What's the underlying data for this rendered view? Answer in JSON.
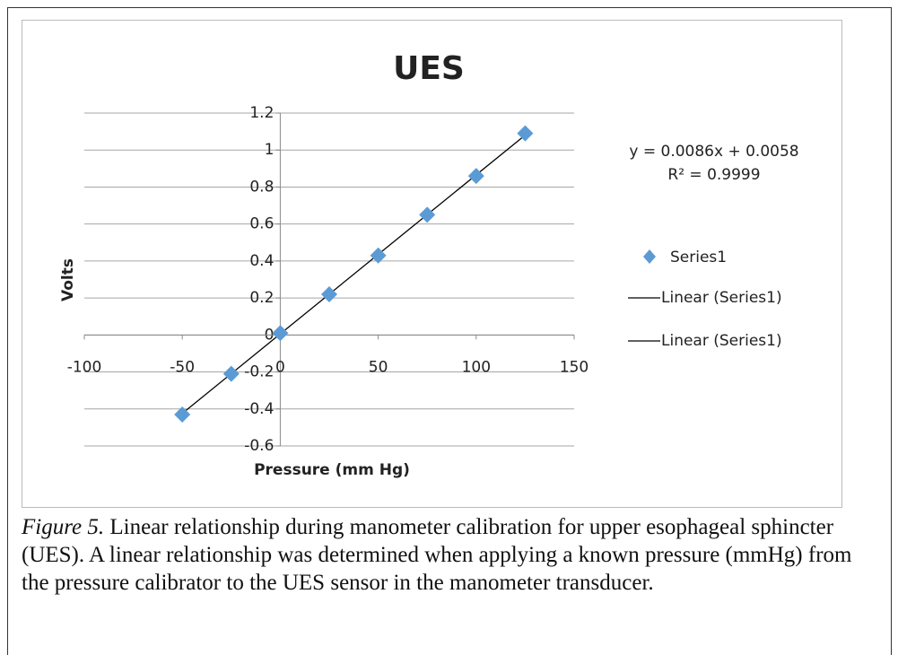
{
  "chart_data": {
    "type": "scatter",
    "title": "UES",
    "x_label": "Pressure (mm Hg)",
    "y_label": "Volts",
    "series": [
      {
        "name": "Series1",
        "color": "#5b9bd5",
        "x": [
          -50,
          -25,
          0,
          25,
          50,
          75,
          100,
          125
        ],
        "values": [
          -0.43,
          -0.21,
          0.01,
          0.22,
          0.43,
          0.65,
          0.86,
          1.09
        ]
      }
    ],
    "trendline": {
      "equation": "y = 0.0086x + 0.0058",
      "r_squared": "R² = 0.9999",
      "slope": 0.0086,
      "intercept": 0.0058,
      "color": "#000000",
      "legend_entries": [
        "Linear (Series1)",
        "Linear (Series1)"
      ]
    },
    "xlim": [
      -100,
      150
    ],
    "xticks": [
      -100,
      -50,
      0,
      50,
      100,
      150
    ],
    "ylim": [
      -0.6,
      1.2
    ],
    "yticks": [
      -0.6,
      -0.4,
      -0.2,
      0,
      0.2,
      0.4,
      0.6,
      0.8,
      1,
      1.2
    ],
    "grid": true
  },
  "caption": {
    "label": "Figure 5.",
    "text": " Linear relationship during manometer calibration for upper esophageal sphincter (UES). A linear relationship was determined when applying a known pressure (mmHg) from the pressure calibrator to the UES sensor in the manometer transducer."
  }
}
